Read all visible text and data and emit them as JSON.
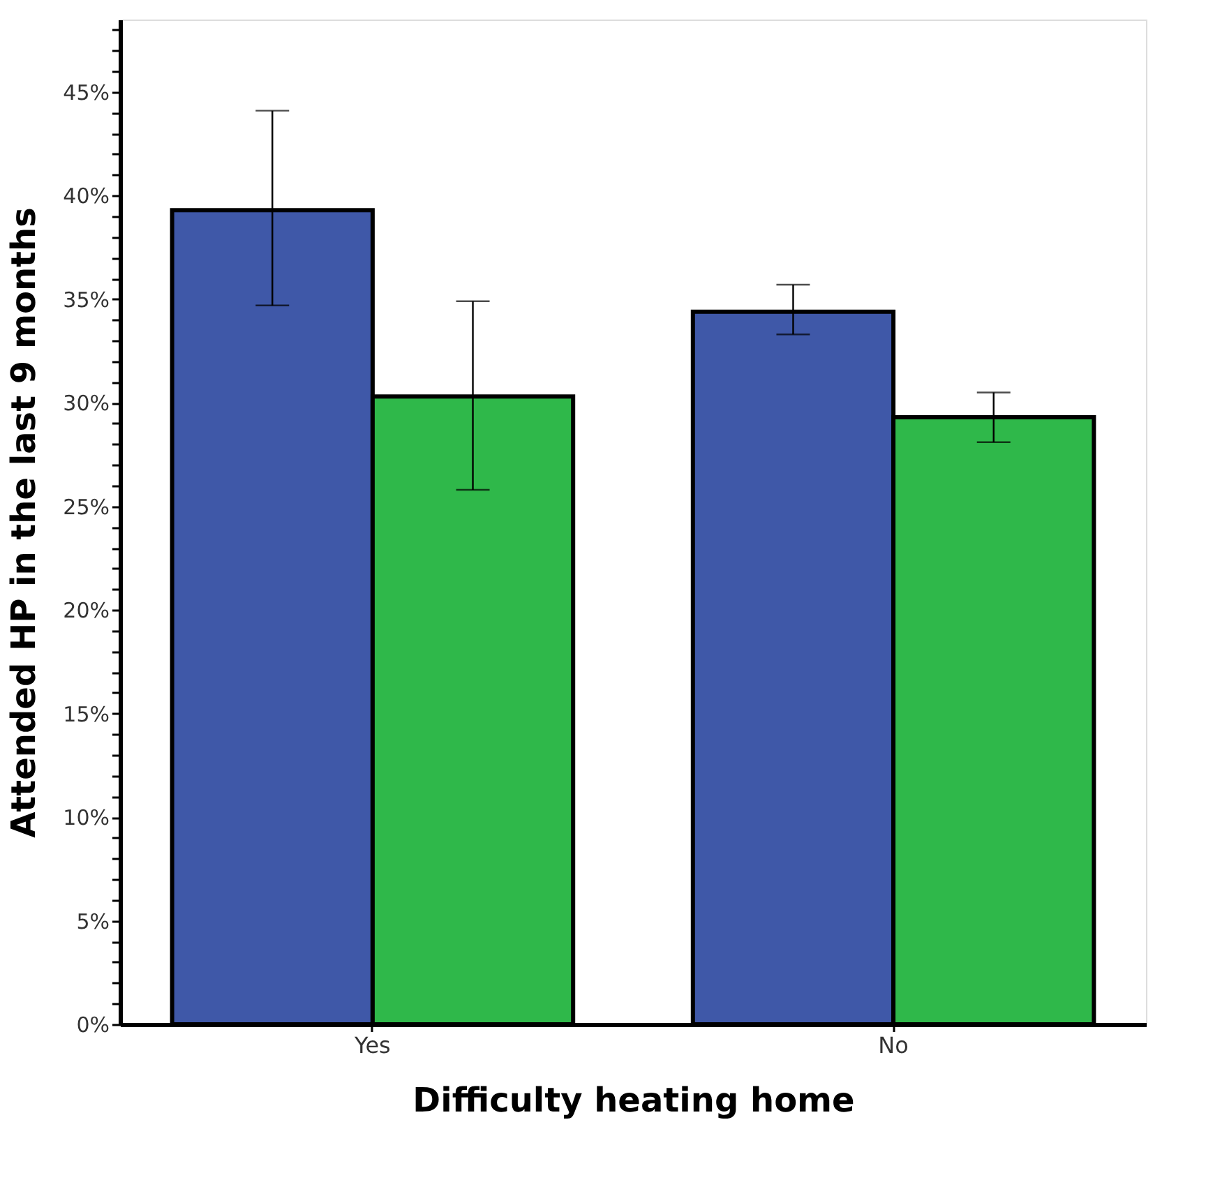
{
  "chart_data": {
    "type": "bar",
    "xlabel": "Difficulty heating home",
    "ylabel": "Attended HP in the last 9 months",
    "categories": [
      "Yes",
      "No"
    ],
    "series": [
      {
        "color": "#3f58a8",
        "values": [
          39.3,
          34.4
        ],
        "errors": [
          [
            34.7,
            44.1
          ],
          [
            33.3,
            35.7
          ]
        ]
      },
      {
        "color": "#2fb84a",
        "values": [
          30.3,
          29.3
        ],
        "errors": [
          [
            25.8,
            34.9
          ],
          [
            28.1,
            30.5
          ]
        ]
      }
    ],
    "ylim": [
      0,
      48.5
    ],
    "yticks": [
      {
        "value": 0,
        "label": "0%"
      },
      {
        "value": 1,
        "label": null
      },
      {
        "value": 2,
        "label": null
      },
      {
        "value": 3,
        "label": null
      },
      {
        "value": 4,
        "label": null
      },
      {
        "value": 5,
        "label": "5%"
      },
      {
        "value": 6,
        "label": null
      },
      {
        "value": 7,
        "label": null
      },
      {
        "value": 8,
        "label": null
      },
      {
        "value": 9,
        "label": null
      },
      {
        "value": 10,
        "label": "10%"
      },
      {
        "value": 11,
        "label": null
      },
      {
        "value": 12,
        "label": null
      },
      {
        "value": 13,
        "label": null
      },
      {
        "value": 14,
        "label": null
      },
      {
        "value": 15,
        "label": "15%"
      },
      {
        "value": 16,
        "label": null
      },
      {
        "value": 17,
        "label": null
      },
      {
        "value": 18,
        "label": null
      },
      {
        "value": 19,
        "label": null
      },
      {
        "value": 20,
        "label": "20%"
      },
      {
        "value": 21,
        "label": null
      },
      {
        "value": 22,
        "label": null
      },
      {
        "value": 23,
        "label": null
      },
      {
        "value": 24,
        "label": null
      },
      {
        "value": 25,
        "label": "25%"
      },
      {
        "value": 26,
        "label": null
      },
      {
        "value": 27,
        "label": null
      },
      {
        "value": 28,
        "label": null
      },
      {
        "value": 29,
        "label": null
      },
      {
        "value": 30,
        "label": "30%"
      },
      {
        "value": 31,
        "label": null
      },
      {
        "value": 32,
        "label": null
      },
      {
        "value": 33,
        "label": null
      },
      {
        "value": 34,
        "label": null
      },
      {
        "value": 35,
        "label": "35%"
      },
      {
        "value": 36,
        "label": null
      },
      {
        "value": 37,
        "label": null
      },
      {
        "value": 38,
        "label": null
      },
      {
        "value": 39,
        "label": null
      },
      {
        "value": 40,
        "label": "40%"
      },
      {
        "value": 41,
        "label": null
      },
      {
        "value": 42,
        "label": null
      },
      {
        "value": 43,
        "label": null
      },
      {
        "value": 44,
        "label": null
      },
      {
        "value": 45,
        "label": "45%"
      },
      {
        "value": 46,
        "label": null
      },
      {
        "value": 47,
        "label": null
      },
      {
        "value": 48,
        "label": null
      }
    ],
    "grid": false,
    "legend": false
  }
}
